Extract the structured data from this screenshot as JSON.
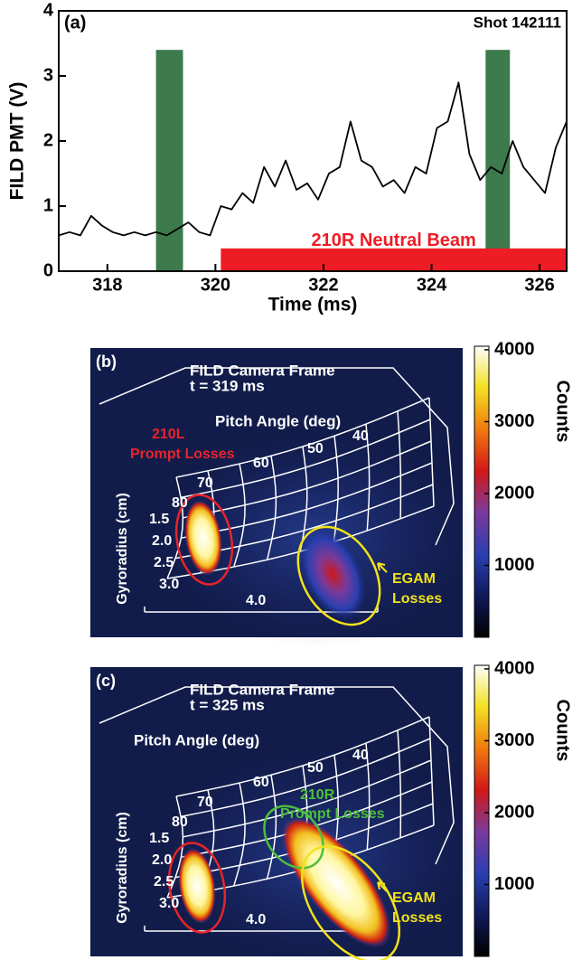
{
  "chart_data": [
    {
      "type": "line",
      "panel_label": "(a)",
      "annotation": "Shot 142111",
      "x_label": "Time (ms)",
      "y_label": "FILD PMT (V)",
      "xlim": [
        317.1,
        326.5
      ],
      "ylim": [
        0,
        4
      ],
      "xticks": [
        318,
        320,
        322,
        324,
        326
      ],
      "yticks": [
        0,
        1,
        2,
        3,
        4
      ],
      "color": "#000000",
      "x": [
        317.1,
        317.3,
        317.5,
        317.7,
        317.9,
        318.1,
        318.3,
        318.5,
        318.7,
        318.9,
        319.1,
        319.3,
        319.5,
        319.7,
        319.9,
        320.1,
        320.3,
        320.5,
        320.7,
        320.9,
        321.1,
        321.3,
        321.5,
        321.7,
        321.9,
        322.1,
        322.3,
        322.5,
        322.7,
        322.9,
        323.1,
        323.3,
        323.5,
        323.7,
        323.9,
        324.1,
        324.3,
        324.5,
        324.7,
        324.9,
        325.1,
        325.3,
        325.5,
        325.7,
        325.9,
        326.1,
        326.3,
        326.5
      ],
      "values": [
        0.55,
        0.6,
        0.55,
        0.85,
        0.7,
        0.6,
        0.55,
        0.6,
        0.55,
        0.6,
        0.55,
        0.65,
        0.75,
        0.6,
        0.55,
        1.0,
        0.95,
        1.2,
        1.05,
        1.6,
        1.3,
        1.7,
        1.25,
        1.35,
        1.1,
        1.5,
        1.6,
        2.3,
        1.7,
        1.6,
        1.3,
        1.4,
        1.2,
        1.6,
        1.5,
        2.2,
        2.3,
        2.9,
        1.8,
        1.4,
        1.6,
        1.5,
        2.0,
        1.6,
        1.4,
        1.2,
        1.9,
        2.3
      ],
      "bands": [
        {
          "x0": 318.9,
          "x1": 319.4,
          "top": 3.4,
          "color": "#3d7a4c"
        },
        {
          "x0": 325.0,
          "x1": 325.45,
          "top": 3.4,
          "color": "#3d7a4c"
        }
      ],
      "beam": {
        "label": "210R Neutral Beam",
        "x0": 320.1,
        "x1": 326.5,
        "height": 0.35,
        "color": "#ee1c25"
      }
    },
    {
      "type": "image",
      "panel_label": "(b)",
      "title": [
        "FILD Camera Frame",
        "t = 319 ms"
      ],
      "pitch_label": "Pitch Angle (deg)",
      "pitch_ticks": [
        40,
        50,
        60,
        70,
        80
      ],
      "gyro_label": "Gyroradius (cm)",
      "gyro_ticks": [
        1.5,
        {
          "value": 2,
          "label": "2.0"
        },
        2.5,
        {
          "value": 3,
          "label": "3.0"
        },
        {
          "value": 4,
          "label": "4.0"
        }
      ],
      "annotations": [
        {
          "text": "210L",
          "color": "#e8242a"
        },
        {
          "text": "Prompt Losses",
          "color": "#e8242a"
        },
        {
          "text": "EGAM",
          "color": "#f2e21a"
        },
        {
          "text": "Losses",
          "color": "#f2e21a"
        }
      ],
      "colorbar": {
        "label": "Counts",
        "lim": [
          0,
          4050
        ],
        "ticks": [
          1000,
          2000,
          3000,
          4000
        ],
        "colormap": [
          "#000000",
          "#101a5a",
          "#2a3fb0",
          "#7a3a9a",
          "#d01818",
          "#f07a10",
          "#f2e020",
          "#ffffff"
        ]
      }
    },
    {
      "type": "image",
      "panel_label": "(c)",
      "title": [
        "FILD Camera Frame",
        "t = 325 ms"
      ],
      "pitch_label": "Pitch Angle (deg)",
      "pitch_ticks": [
        40,
        50,
        60,
        70,
        80
      ],
      "gyro_label": "Gyroradius (cm)",
      "gyro_ticks": [
        1.5,
        {
          "value": 2,
          "label": "2.0"
        },
        2.5,
        {
          "value": 3,
          "label": "3.0"
        },
        {
          "value": 4,
          "label": "4.0"
        }
      ],
      "annotations": [
        {
          "text": "210R",
          "color": "#4cbf3c"
        },
        {
          "text": "Prompt Losses",
          "color": "#4cbf3c"
        },
        {
          "text": "EGAM",
          "color": "#f2e21a"
        },
        {
          "text": "Losses",
          "color": "#f2e21a"
        }
      ],
      "colorbar": {
        "label": "Counts",
        "lim": [
          0,
          4050
        ],
        "ticks": [
          1000,
          2000,
          3000,
          4000
        ],
        "colormap": [
          "#000000",
          "#101a5a",
          "#2a3fb0",
          "#7a3a9a",
          "#d01818",
          "#f07a10",
          "#f2e020",
          "#ffffff"
        ]
      }
    }
  ]
}
